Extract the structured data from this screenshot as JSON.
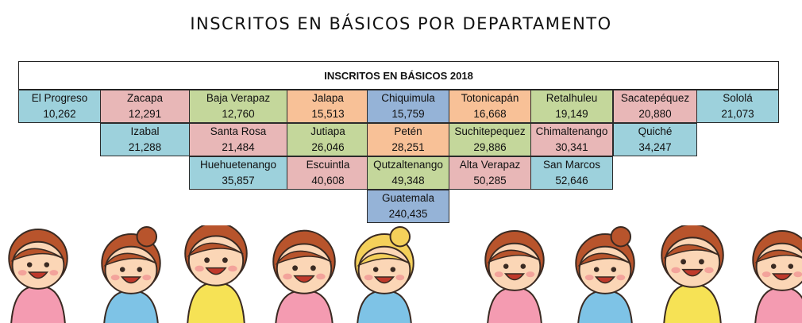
{
  "title": "INSCRITOS EN BÁSICOS POR DEPARTAMENTO",
  "table": {
    "header": "INSCRITOS EN BÁSICOS 2018",
    "colors": {
      "blue": "#9dd1dc",
      "pink": "#e8b7b7",
      "green": "#c4d79b",
      "orange": "#f8c197",
      "steel": "#95b3d7"
    },
    "departments": [
      {
        "name": "El Progreso",
        "value": "10,262",
        "color": "#9dd1dc"
      },
      {
        "name": "Zacapa",
        "value": "12,291",
        "color": "#e8b7b7"
      },
      {
        "name": "Baja Verapaz",
        "value": "12,760",
        "color": "#c4d79b"
      },
      {
        "name": "Jalapa",
        "value": "15,513",
        "color": "#f8c197"
      },
      {
        "name": "Chiquimula",
        "value": "15,759",
        "color": "#95b3d7"
      },
      {
        "name": "Totonicapán",
        "value": "16,668",
        "color": "#f8c197"
      },
      {
        "name": "Retalhuleu",
        "value": "19,149",
        "color": "#c4d79b"
      },
      {
        "name": "Sacatepéquez",
        "value": "20,880",
        "color": "#e8b7b7"
      },
      {
        "name": "Sololá",
        "value": "21,073",
        "color": "#9dd1dc"
      },
      {
        "name": "Izabal",
        "value": "21,288",
        "color": "#9dd1dc"
      },
      {
        "name": "Santa Rosa",
        "value": "21,484",
        "color": "#e8b7b7"
      },
      {
        "name": "Jutiapa",
        "value": "26,046",
        "color": "#c4d79b"
      },
      {
        "name": "Petén",
        "value": "28,251",
        "color": "#f8c197"
      },
      {
        "name": "Suchitepequez",
        "value": "29,886",
        "color": "#c4d79b"
      },
      {
        "name": "Chimaltenango",
        "value": "30,341",
        "color": "#e8b7b7"
      },
      {
        "name": "Quiché",
        "value": "34,247",
        "color": "#9dd1dc"
      },
      {
        "name": "Huehuetenango",
        "value": "35,857",
        "color": "#9dd1dc"
      },
      {
        "name": "Escuintla",
        "value": "40,608",
        "color": "#e8b7b7"
      },
      {
        "name": "Qutzaltenango",
        "value": "49,348",
        "color": "#c4d79b"
      },
      {
        "name": "Alta Verapaz",
        "value": "50,285",
        "color": "#e8b7b7"
      },
      {
        "name": "San Marcos",
        "value": "52,646",
        "color": "#9dd1dc"
      },
      {
        "name": "Guatemala",
        "value": "240,435",
        "color": "#95b3d7"
      }
    ]
  },
  "illustration": {
    "icon": "cartoon-children-icon",
    "colors": {
      "skin": "#fbd6b6",
      "hair": "#b8542c",
      "hair_blonde": "#f4d05a",
      "outline": "#3a2a22",
      "cheek": "#f3a39b",
      "shirt_pink": "#f49bb1",
      "shirt_blue": "#7ec3e6",
      "shirt_yellow": "#f6e255"
    }
  }
}
